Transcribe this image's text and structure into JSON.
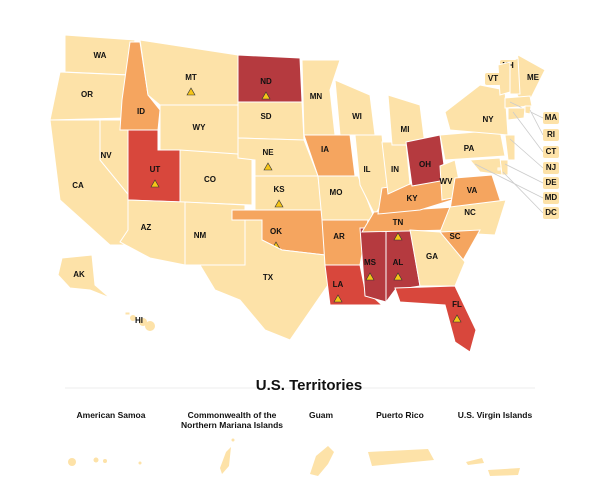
{
  "map": {
    "states": [
      {
        "label": "WA",
        "color": "#fde2a8",
        "warning": false
      },
      {
        "label": "OR",
        "color": "#fde2a8",
        "warning": false
      },
      {
        "label": "CA",
        "color": "#fde2a8",
        "warning": false
      },
      {
        "label": "NV",
        "color": "#fde2a8",
        "warning": false
      },
      {
        "label": "ID",
        "color": "#f5a55f",
        "warning": false
      },
      {
        "label": "MT",
        "color": "#fde2a8",
        "warning": true
      },
      {
        "label": "WY",
        "color": "#fde2a8",
        "warning": false
      },
      {
        "label": "UT",
        "color": "#d8473c",
        "warning": true
      },
      {
        "label": "CO",
        "color": "#fde2a8",
        "warning": false
      },
      {
        "label": "AZ",
        "color": "#fde2a8",
        "warning": false
      },
      {
        "label": "NM",
        "color": "#fde2a8",
        "warning": false
      },
      {
        "label": "ND",
        "color": "#b53a3f",
        "warning": true
      },
      {
        "label": "SD",
        "color": "#fde2a8",
        "warning": false
      },
      {
        "label": "NE",
        "color": "#fde2a8",
        "warning": true
      },
      {
        "label": "KS",
        "color": "#fde2a8",
        "warning": true
      },
      {
        "label": "OK",
        "color": "#f5a55f",
        "warning": true
      },
      {
        "label": "TX",
        "color": "#fde2a8",
        "warning": false
      },
      {
        "label": "MN",
        "color": "#fde2a8",
        "warning": false
      },
      {
        "label": "IA",
        "color": "#f5a55f",
        "warning": false
      },
      {
        "label": "MO",
        "color": "#fde2a8",
        "warning": false
      },
      {
        "label": "AR",
        "color": "#f5a55f",
        "warning": false
      },
      {
        "label": "LA",
        "color": "#d8473c",
        "warning": true
      },
      {
        "label": "WI",
        "color": "#fde2a8",
        "warning": false
      },
      {
        "label": "IL",
        "color": "#fde2a8",
        "warning": false
      },
      {
        "label": "MS",
        "color": "#b53a3f",
        "warning": true
      },
      {
        "label": "AL",
        "color": "#b53a3f",
        "warning": true
      },
      {
        "label": "TN",
        "color": "#f5a55f",
        "warning": true
      },
      {
        "label": "KY",
        "color": "#f5a55f",
        "warning": false
      },
      {
        "label": "IN",
        "color": "#fde2a8",
        "warning": false
      },
      {
        "label": "MI",
        "color": "#fde2a8",
        "warning": false
      },
      {
        "label": "OH",
        "color": "#b53a3f",
        "warning": false
      },
      {
        "label": "WV",
        "color": "#fde2a8",
        "warning": false
      },
      {
        "label": "VA",
        "color": "#f5a55f",
        "warning": false
      },
      {
        "label": "PA",
        "color": "#fde2a8",
        "warning": false
      },
      {
        "label": "NY",
        "color": "#fde2a8",
        "warning": false
      },
      {
        "label": "NC",
        "color": "#fde2a8",
        "warning": false
      },
      {
        "label": "SC",
        "color": "#f5a55f",
        "warning": false
      },
      {
        "label": "GA",
        "color": "#fde2a8",
        "warning": false
      },
      {
        "label": "FL",
        "color": "#d8473c",
        "warning": true
      },
      {
        "label": "ME",
        "color": "#fde2a8",
        "warning": false
      },
      {
        "label": "NH",
        "color": "#fde2a8",
        "warning": false
      },
      {
        "label": "VT",
        "color": "#fde2a8",
        "warning": false
      },
      {
        "label": "MA",
        "color": "#fde2a8",
        "warning": false
      },
      {
        "label": "RI",
        "color": "#fde2a8",
        "warning": false
      },
      {
        "label": "CT",
        "color": "#fde2a8",
        "warning": false
      },
      {
        "label": "NJ",
        "color": "#fde2a8",
        "warning": false
      },
      {
        "label": "DE",
        "color": "#fde2a8",
        "warning": false
      },
      {
        "label": "MD",
        "color": "#fde2a8",
        "warning": false
      },
      {
        "label": "DC",
        "color": "#fde2a8",
        "warning": false
      },
      {
        "label": "AK",
        "color": "#fde2a8",
        "warning": false
      },
      {
        "label": "HI",
        "color": "#fde2a8",
        "warning": false
      }
    ]
  },
  "territories": {
    "title": "U.S. Territories",
    "items": [
      {
        "label": "American Samoa",
        "color": "#fde2a8"
      },
      {
        "label": "Commonwealth of the Northern Mariana Islands",
        "color": "#fde2a8"
      },
      {
        "label": "Guam",
        "color": "#fde2a8"
      },
      {
        "label": "Puerto Rico",
        "color": "#fde2a8"
      },
      {
        "label": "U.S. Virgin Islands",
        "color": "#fde2a8"
      }
    ]
  }
}
